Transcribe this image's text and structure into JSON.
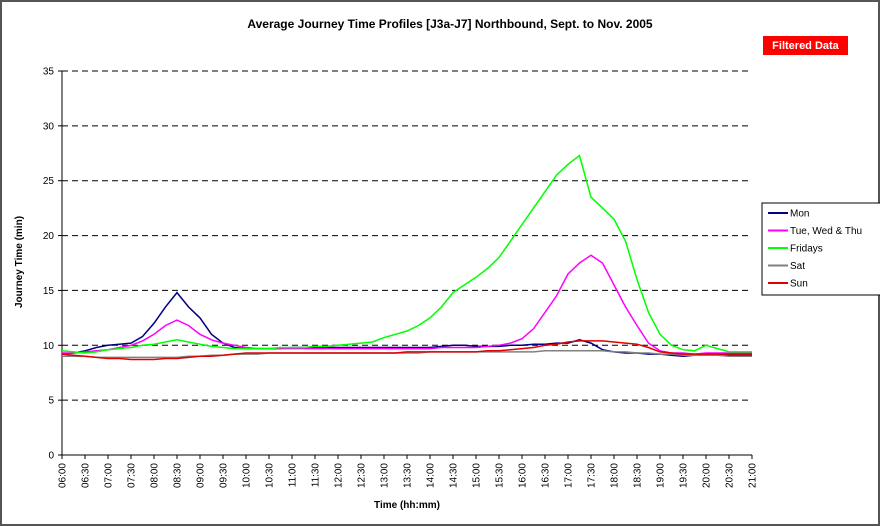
{
  "chart_data": {
    "type": "line",
    "title": "Average Journey Time Profiles [J3a-J7] Northbound, Sept. to Nov. 2005",
    "annotation": "Filtered Data",
    "x_label": "Time (hh:mm)",
    "y_label": "Journey Time (min)",
    "categories": [
      "06:00",
      null,
      "06:30",
      null,
      "07:00",
      null,
      "07:30",
      null,
      "08:00",
      null,
      "08:30",
      null,
      "09:00",
      null,
      "09:30",
      null,
      "10:00",
      null,
      "10:30",
      null,
      "11:00",
      null,
      "11:30",
      null,
      "12:00",
      null,
      "12:30",
      null,
      "13:00",
      null,
      "13:30",
      null,
      "14:00",
      null,
      "14:30",
      null,
      "15:00",
      null,
      "15:30",
      null,
      "16:00",
      null,
      "16:30",
      null,
      "17:00",
      null,
      "17:30",
      null,
      "18:00",
      null,
      "18:30",
      null,
      "19:00",
      null,
      "19:30",
      null,
      "20:00",
      null,
      "20:30",
      null,
      "21:00"
    ],
    "ylim": [
      0,
      35
    ],
    "yticks": [
      0,
      5,
      10,
      15,
      20,
      25,
      30,
      35
    ],
    "grid": true,
    "legend": "right",
    "series": [
      {
        "name": "Mon",
        "color": "#000080",
        "values": [
          9.2,
          9.3,
          9.5,
          9.8,
          10,
          10.1,
          10.2,
          10.8,
          12,
          13.5,
          14.8,
          13.5,
          12.5,
          11,
          10.2,
          9.8,
          9.7,
          9.7,
          9.7,
          9.7,
          9.8,
          9.8,
          9.8,
          9.8,
          9.8,
          9.8,
          9.8,
          9.8,
          9.8,
          9.8,
          9.8,
          9.8,
          9.8,
          9.9,
          10,
          10,
          9.9,
          9.9,
          9.9,
          10,
          10,
          10.1,
          10.1,
          10.2,
          10.2,
          10.5,
          10.2,
          9.6,
          9.4,
          9.3,
          9.3,
          9.2,
          9.2,
          9.1,
          9.0,
          9.1,
          9.2,
          9.2,
          9.1,
          9.1,
          9.1
        ]
      },
      {
        "name": "Tue, Wed & Thu",
        "color": "#ff00ff",
        "values": [
          9.3,
          9.3,
          9.4,
          9.5,
          9.6,
          9.8,
          10,
          10.4,
          11,
          11.8,
          12.3,
          11.8,
          11,
          10.5,
          10.2,
          10,
          9.8,
          9.7,
          9.7,
          9.7,
          9.7,
          9.7,
          9.7,
          9.7,
          9.7,
          9.7,
          9.7,
          9.7,
          9.7,
          9.7,
          9.7,
          9.7,
          9.7,
          9.8,
          9.8,
          9.8,
          9.8,
          9.9,
          10,
          10.2,
          10.6,
          11.5,
          13,
          14.5,
          16.5,
          17.5,
          18.2,
          17.5,
          15.5,
          13.5,
          11.8,
          10.2,
          9.5,
          9.3,
          9.3,
          9.2,
          9.3,
          9.3,
          9.3,
          9.3,
          9.3
        ]
      },
      {
        "name": "Fridays",
        "color": "#00ff00",
        "values": [
          9.5,
          9.4,
          9.3,
          9.4,
          9.6,
          9.7,
          9.8,
          10,
          10.1,
          10.3,
          10.5,
          10.3,
          10.1,
          9.9,
          9.8,
          9.7,
          9.7,
          9.7,
          9.7,
          9.8,
          9.8,
          9.8,
          9.9,
          9.9,
          10,
          10.1,
          10.2,
          10.3,
          10.7,
          11,
          11.3,
          11.8,
          12.5,
          13.5,
          14.8,
          15.5,
          16.2,
          17,
          18,
          19.5,
          21,
          22.5,
          24,
          25.5,
          26.5,
          27.3,
          23.5,
          22.5,
          21.5,
          19.5,
          16,
          13,
          11,
          10,
          9.6,
          9.5,
          10,
          9.7,
          9.4,
          9.4,
          9.4
        ]
      },
      {
        "name": "Sat",
        "color": "#808080",
        "values": [
          9.0,
          9.0,
          9.0,
          8.9,
          8.9,
          8.9,
          8.9,
          8.9,
          8.9,
          8.9,
          8.9,
          9.0,
          9.0,
          9.1,
          9.1,
          9.2,
          9.2,
          9.2,
          9.3,
          9.3,
          9.3,
          9.3,
          9.3,
          9.3,
          9.3,
          9.3,
          9.3,
          9.3,
          9.3,
          9.3,
          9.3,
          9.3,
          9.4,
          9.4,
          9.4,
          9.4,
          9.4,
          9.4,
          9.4,
          9.4,
          9.4,
          9.4,
          9.5,
          9.5,
          9.5,
          9.5,
          9.5,
          9.5,
          9.4,
          9.4,
          9.3,
          9.3,
          9.2,
          9.2,
          9.1,
          9.1,
          9.1,
          9.1,
          9.0,
          9.0,
          9.0
        ]
      },
      {
        "name": "Sun",
        "color": "#e00000",
        "values": [
          9.2,
          9.1,
          9.0,
          8.9,
          8.8,
          8.8,
          8.7,
          8.7,
          8.7,
          8.8,
          8.8,
          8.9,
          9.0,
          9.0,
          9.1,
          9.2,
          9.3,
          9.3,
          9.3,
          9.3,
          9.3,
          9.3,
          9.3,
          9.3,
          9.3,
          9.3,
          9.3,
          9.3,
          9.3,
          9.3,
          9.4,
          9.4,
          9.4,
          9.4,
          9.4,
          9.4,
          9.4,
          9.5,
          9.5,
          9.6,
          9.7,
          9.8,
          10,
          10.1,
          10.3,
          10.4,
          10.4,
          10.4,
          10.3,
          10.2,
          10.1,
          9.8,
          9.4,
          9.3,
          9.2,
          9.2,
          9.2,
          9.2,
          9.2,
          9.2,
          9.2
        ]
      }
    ]
  }
}
